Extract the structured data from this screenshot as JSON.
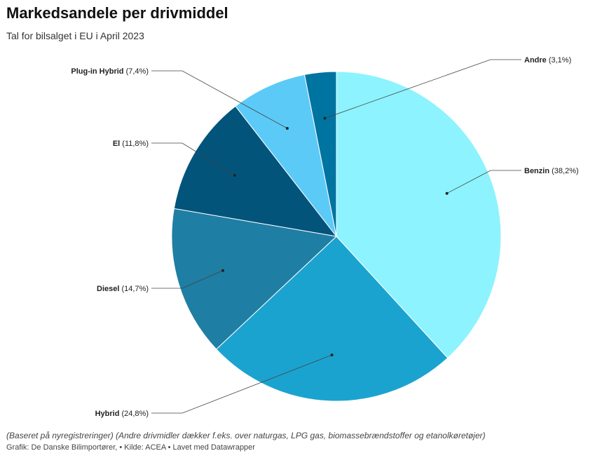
{
  "chart_data": {
    "type": "pie",
    "title": "Markedsandele per drivmiddel",
    "subtitle": "Tal for bilsalget i EU i April 2023",
    "slices": [
      {
        "name": "Benzin",
        "value": 38.2,
        "label": "(38,2%)",
        "color": "#8df3fe"
      },
      {
        "name": "Hybrid",
        "value": 24.8,
        "label": "(24,8%)",
        "color": "#1ba3d0"
      },
      {
        "name": "Diesel",
        "value": 14.7,
        "label": "(14,7%)",
        "color": "#1f7ea3"
      },
      {
        "name": "El",
        "value": 11.8,
        "label": "(11,8%)",
        "color": "#02547b"
      },
      {
        "name": "Plug-in Hybrid",
        "value": 7.4,
        "label": "(7,4%)",
        "color": "#5ccaf7"
      },
      {
        "name": "Andre",
        "value": 3.1,
        "label": "(3,1%)",
        "color": "#0074a0"
      }
    ]
  },
  "notes": "(Baseret på nyregistreringer) (Andre drivmidler dækker f.eks. over naturgas, LPG gas, biomassebrændstoffer og etanolkøretøjer)",
  "byline": "Grafik: De Danske Bilimportører, • Kilde: ACEA • Lavet med Datawrapper"
}
